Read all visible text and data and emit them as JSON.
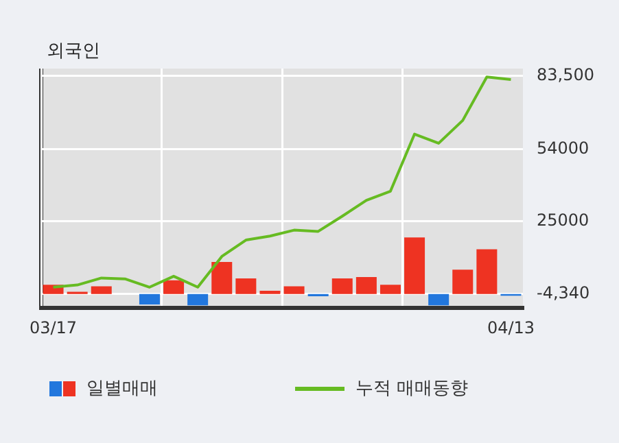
{
  "chart_data": {
    "type": "bar",
    "title": "외국인",
    "categories": [
      "03/17",
      null,
      null,
      null,
      null,
      null,
      null,
      null,
      null,
      null,
      null,
      null,
      null,
      null,
      null,
      null,
      null,
      null,
      null,
      "04/13"
    ],
    "series": [
      {
        "name": "일별매매",
        "colors": [
          "#ee3322",
          "#ee3322",
          "#ee3322",
          "#ee3322",
          "#2277dd",
          "#ee3322",
          "#2277dd",
          "#ee3322",
          "#ee3322",
          "#ee3322",
          "#ee3322",
          "#2277dd",
          "#ee3322",
          "#ee3322",
          "#ee3322",
          "#ee3322",
          "#2277dd",
          "#ee3322",
          "#ee3322",
          "#2277dd"
        ],
        "base": [
          -4340,
          -4340,
          -4340,
          null,
          -4340,
          -4340,
          -4340,
          -4340,
          -4340,
          -4340,
          -4340,
          -4340,
          -4340,
          -4340,
          -4340,
          -4340,
          -4340,
          -4340,
          -4340,
          -4340
        ],
        "values": [
          3700,
          900,
          3100,
          null,
          -4200,
          5500,
          -4600,
          12900,
          6300,
          1300,
          3100,
          -900,
          6300,
          6800,
          3700,
          22800,
          -4600,
          9800,
          18000,
          -700
        ]
      },
      {
        "name": "누적 매매동향",
        "type": "line",
        "color": "#66bb22",
        "values": [
          -1600,
          -700,
          2100,
          1700,
          -1600,
          2800,
          -1600,
          10800,
          17400,
          19000,
          21400,
          20900,
          27000,
          33400,
          37100,
          60100,
          56400,
          65600,
          83100,
          82100
        ]
      }
    ],
    "ylim": [
      -10000,
      86500
    ],
    "yticks": [
      {
        "value": 83500,
        "label": "83,500"
      },
      54000,
      25000,
      {
        "value": -4340,
        "label": "-4,340"
      }
    ],
    "grid": true,
    "legend": "bottom",
    "marker": "none",
    "line_style": "solid"
  }
}
